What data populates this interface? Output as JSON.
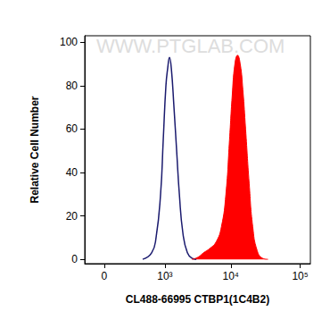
{
  "chart_data": {
    "type": "line",
    "x_label": "CL488-66995 CTBP1(1C4B2)",
    "y_label": "Relative Cell Number",
    "annotations": [
      "WWW.PTGLAB.COM"
    ],
    "log": "x",
    "xlim": [
      -140,
      140000
    ],
    "xticks": [
      {
        "value": 0,
        "label": "0"
      },
      {
        "value": 1000,
        "label": "10³"
      },
      {
        "value": 10000,
        "label": "10⁴"
      },
      {
        "value": 100000,
        "label": "10⁵"
      }
    ],
    "ylim": [
      -2,
      103
    ],
    "yticks": [
      0,
      20,
      40,
      60,
      80,
      100
    ],
    "grid": false,
    "series": [
      {
        "type": "line",
        "color": "#1a1a6e",
        "x": [
          400,
          591,
          708,
          847,
          939,
          1040,
          1112,
          1190,
          1273,
          1404,
          1548,
          1707,
          1939,
          2271,
          2657,
          3105
        ],
        "values": [
          0,
          3,
          10,
          30,
          55,
          80,
          88,
          93,
          88,
          70,
          50,
          30,
          12,
          3,
          0.5,
          0
        ]
      },
      {
        "type": "area",
        "color": "#ff0000",
        "x": [
          2657,
          3307,
          3978,
          4930,
          6100,
          7300,
          8490,
          9580,
          10470,
          11470,
          12530,
          13710,
          14980,
          16400,
          18470,
          20800,
          24120,
          28830,
          34500
        ],
        "values": [
          0,
          1,
          3,
          5,
          8,
          15,
          30,
          55,
          75,
          90,
          94,
          90,
          78,
          60,
          35,
          15,
          4,
          0.5,
          0
        ]
      }
    ]
  }
}
